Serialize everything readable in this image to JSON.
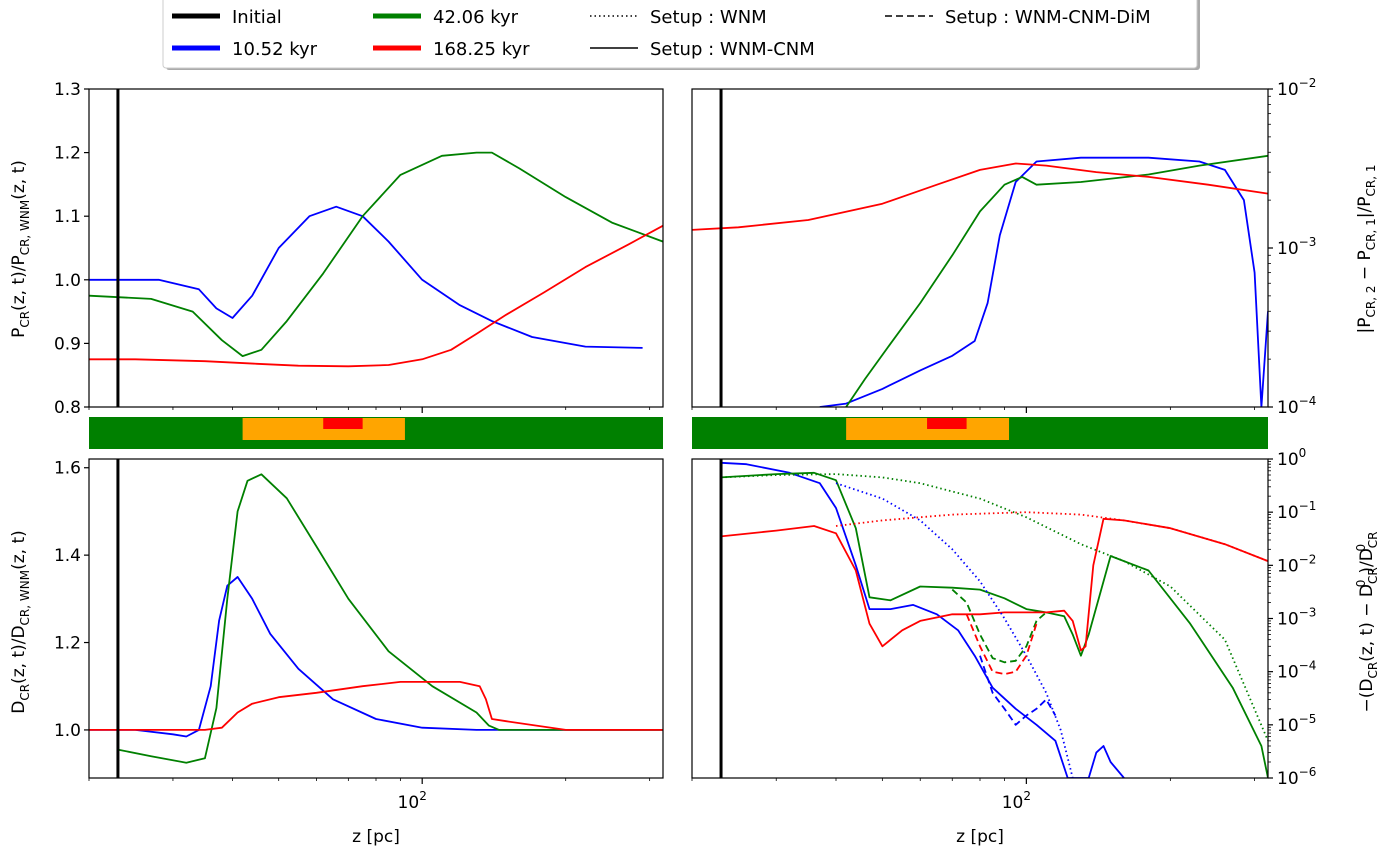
{
  "legend": {
    "entries": [
      {
        "label": "Initial",
        "color": "#000000",
        "style": "thick"
      },
      {
        "label": "10.52 kyr",
        "color": "#0000ff",
        "style": "thick"
      },
      {
        "label": "42.06 kyr",
        "color": "#008000",
        "style": "thick"
      },
      {
        "label": "168.25 kyr",
        "color": "#ff0000",
        "style": "thick"
      },
      {
        "label": "Setup : WNM",
        "color": "#000000",
        "style": "dotted"
      },
      {
        "label": "Setup : WNM-CNM",
        "color": "#000000",
        "style": "solid"
      },
      {
        "label": "Setup : WNM-CNM-DiM",
        "color": "#000000",
        "style": "dashed"
      }
    ]
  },
  "chart_data": [
    {
      "type": "line",
      "panel": "top-left",
      "ylabel": "P_CR(z,t)/P_CR,WNM(z,t)",
      "xscale": "log",
      "xlim": [
        20,
        320
      ],
      "ylim": [
        0.8,
        1.3
      ],
      "yticks": [
        "0.8",
        "0.9",
        "1.0",
        "1.1",
        "1.2",
        "1.3"
      ],
      "initial_x": 23,
      "series": [
        {
          "name": "10.52 kyr",
          "color": "#0000ff",
          "x": [
            20,
            28,
            34,
            37,
            40,
            44,
            50,
            58,
            66,
            75,
            85,
            100,
            120,
            140,
            170,
            220,
            290
          ],
          "y": [
            1.0,
            1.0,
            0.985,
            0.955,
            0.94,
            0.975,
            1.05,
            1.1,
            1.115,
            1.1,
            1.06,
            1.0,
            0.96,
            0.935,
            0.91,
            0.895,
            0.893
          ]
        },
        {
          "name": "42.06 kyr",
          "color": "#008000",
          "x": [
            20,
            27,
            33,
            38,
            42,
            46,
            52,
            62,
            75,
            90,
            110,
            130,
            140,
            160,
            200,
            250,
            320
          ],
          "y": [
            0.975,
            0.97,
            0.95,
            0.905,
            0.88,
            0.89,
            0.935,
            1.01,
            1.1,
            1.165,
            1.195,
            1.2,
            1.2,
            1.175,
            1.13,
            1.09,
            1.06
          ]
        },
        {
          "name": "168.25 kyr",
          "color": "#ff0000",
          "x": [
            20,
            25,
            35,
            45,
            55,
            70,
            85,
            100,
            115,
            130,
            150,
            180,
            220,
            270,
            320
          ],
          "y": [
            0.875,
            0.875,
            0.872,
            0.868,
            0.865,
            0.864,
            0.866,
            0.875,
            0.89,
            0.915,
            0.945,
            0.98,
            1.02,
            1.055,
            1.085
          ]
        }
      ]
    },
    {
      "type": "line",
      "panel": "top-right",
      "ylabel": "|P_CR,2 − P_CR,1|/P_CR,1",
      "xscale": "log",
      "yscale": "log",
      "xlim": [
        20,
        320
      ],
      "ylim": [
        0.0001,
        0.01
      ],
      "yticks": [
        "10^-4",
        "10^-3",
        "10^-2"
      ],
      "initial_x": 23,
      "series": [
        {
          "name": "10.52 kyr",
          "color": "#0000ff",
          "x": [
            37,
            42,
            50,
            60,
            70,
            78,
            83,
            88,
            95,
            105,
            130,
            180,
            230,
            260,
            285,
            300,
            310,
            320
          ],
          "y": [
            0.0001,
            0.000105,
            0.00013,
            0.00017,
            0.00021,
            0.00026,
            0.00045,
            0.0012,
            0.0026,
            0.0035,
            0.0037,
            0.0037,
            0.0035,
            0.0031,
            0.002,
            0.0007,
            0.0001,
            0.0004
          ]
        },
        {
          "name": "42.06 kyr",
          "color": "#008000",
          "x": [
            42,
            46,
            52,
            60,
            70,
            80,
            90,
            98,
            105,
            130,
            180,
            230,
            320
          ],
          "y": [
            0.0001,
            0.00015,
            0.00025,
            0.00045,
            0.0009,
            0.0017,
            0.0025,
            0.0028,
            0.0025,
            0.0026,
            0.0029,
            0.0033,
            0.0038
          ]
        },
        {
          "name": "168.25 kyr",
          "color": "#ff0000",
          "x": [
            20,
            25,
            35,
            50,
            65,
            80,
            95,
            110,
            140,
            180,
            240,
            320
          ],
          "y": [
            0.0013,
            0.00135,
            0.0015,
            0.0019,
            0.0025,
            0.0031,
            0.0034,
            0.0033,
            0.003,
            0.0028,
            0.0025,
            0.0022
          ]
        }
      ]
    },
    {
      "type": "line",
      "panel": "bottom-left",
      "ylabel": "D_CR(z,t)/D_CR,WNM(z,t)",
      "xlabel": "z [pc]",
      "xscale": "log",
      "xlim": [
        20,
        320
      ],
      "ylim": [
        0.89,
        1.62
      ],
      "yticks": [
        "1.0",
        "1.2",
        "1.4",
        "1.6"
      ],
      "xticks": [
        "10^2"
      ],
      "initial_x": 23,
      "series": [
        {
          "name": "10.52 kyr",
          "color": "#0000ff",
          "x": [
            20,
            25,
            30,
            32,
            34,
            36,
            37.5,
            39,
            41,
            44,
            48,
            55,
            65,
            80,
            100,
            130,
            200,
            320
          ],
          "y": [
            1.0,
            1.0,
            0.99,
            0.985,
            1.0,
            1.1,
            1.25,
            1.33,
            1.35,
            1.3,
            1.22,
            1.14,
            1.07,
            1.025,
            1.005,
            1.0,
            1.0,
            1.0
          ]
        },
        {
          "name": "42.06 kyr",
          "color": "#008000",
          "x": [
            23,
            27,
            32,
            35,
            37,
            39,
            41,
            43,
            46,
            52,
            60,
            70,
            85,
            105,
            130,
            138,
            145,
            170,
            250,
            320
          ],
          "y": [
            0.955,
            0.94,
            0.925,
            0.935,
            1.05,
            1.3,
            1.5,
            1.57,
            1.585,
            1.53,
            1.42,
            1.3,
            1.18,
            1.1,
            1.04,
            1.01,
            1.0,
            1.0,
            1.0,
            1.0
          ]
        },
        {
          "name": "168.25 kyr",
          "color": "#ff0000",
          "x": [
            20,
            30,
            35,
            38,
            41,
            44,
            50,
            60,
            75,
            90,
            100,
            120,
            132,
            136,
            140,
            150,
            200,
            320
          ],
          "y": [
            1.0,
            1.0,
            1.0,
            1.005,
            1.04,
            1.06,
            1.075,
            1.085,
            1.1,
            1.11,
            1.11,
            1.11,
            1.1,
            1.07,
            1.025,
            1.02,
            1.0,
            1.0
          ]
        }
      ]
    },
    {
      "type": "line",
      "panel": "bottom-right",
      "ylabel": "−(D_CR(z,t) − D_CR^0)/D_CR^0",
      "xlabel": "z [pc]",
      "xscale": "log",
      "yscale": "log",
      "xlim": [
        20,
        320
      ],
      "ylim": [
        1e-06,
        1
      ],
      "yticks": [
        "10^-6",
        "10^-5",
        "10^-4",
        "10^-3",
        "10^-2",
        "10^-1",
        "10^0"
      ],
      "xticks": [
        "10^2"
      ],
      "initial_x": 23,
      "series": [
        {
          "name": "10.52 kyr",
          "color": "#0000ff",
          "x": [
            23,
            26,
            32,
            37,
            40,
            44,
            47,
            52,
            58,
            65,
            72,
            78,
            85,
            95,
            105,
            115,
            122,
            128,
            135,
            140,
            145,
            150,
            160
          ],
          "y": [
            0.85,
            0.8,
            0.55,
            0.35,
            0.12,
            0.01,
            0.0015,
            0.0015,
            0.0018,
            0.0012,
            0.0006,
            0.0002,
            5e-05,
            2e-05,
            1e-05,
            5e-06,
            1e-06,
            1e-06,
            1e-06,
            3e-06,
            4e-06,
            2e-06,
            1e-06
          ]
        },
        {
          "name": "42.06 kyr",
          "color": "#008000",
          "x": [
            23,
            30,
            36,
            40,
            44,
            47,
            52,
            60,
            70,
            80,
            90,
            100,
            110,
            120,
            125,
            130,
            135,
            150,
            180,
            220,
            270,
            310,
            320
          ],
          "y": [
            0.45,
            0.52,
            0.55,
            0.4,
            0.05,
            0.0025,
            0.0022,
            0.004,
            0.0038,
            0.0035,
            0.0024,
            0.0015,
            0.0013,
            0.0011,
            0.0005,
            0.0002,
            0.0005,
            0.015,
            0.008,
            0.0008,
            5e-05,
            4e-06,
            1e-06
          ]
        },
        {
          "name": "168.25 kyr",
          "color": "#ff0000",
          "x": [
            23,
            30,
            36,
            40,
            44,
            47,
            50,
            55,
            60,
            70,
            80,
            90,
            100,
            110,
            120,
            125,
            130,
            133,
            138,
            145,
            160,
            200,
            260,
            320
          ],
          "y": [
            0.035,
            0.045,
            0.055,
            0.04,
            0.008,
            0.0008,
            0.0003,
            0.0006,
            0.0009,
            0.0012,
            0.0012,
            0.0013,
            0.0013,
            0.0013,
            0.0014,
            0.0009,
            0.00025,
            0.0003,
            0.01,
            0.075,
            0.07,
            0.05,
            0.025,
            0.012
          ]
        },
        {
          "name": "42.06 kyr WNM",
          "color": "#008000",
          "dash": "dotted",
          "x": [
            23,
            30,
            40,
            50,
            60,
            80,
            100,
            130,
            160,
            200,
            260,
            320
          ],
          "y": [
            0.45,
            0.5,
            0.52,
            0.45,
            0.35,
            0.18,
            0.08,
            0.025,
            0.012,
            0.004,
            0.0004,
            5e-06
          ]
        },
        {
          "name": "168.25 kyr WNM",
          "color": "#ff0000",
          "dash": "dotted",
          "x": [
            40,
            50,
            70,
            100,
            130,
            160,
            200,
            260,
            320
          ],
          "y": [
            0.055,
            0.07,
            0.09,
            0.1,
            0.09,
            0.07,
            0.05,
            0.025,
            0.012
          ]
        },
        {
          "name": "10.52 kyr WNM",
          "color": "#0000ff",
          "dash": "dotted",
          "x": [
            40,
            50,
            60,
            70,
            80,
            90,
            100,
            110,
            118,
            125
          ],
          "y": [
            0.35,
            0.18,
            0.07,
            0.02,
            0.005,
            0.001,
            0.0002,
            4e-05,
            8e-06,
            1e-06
          ]
        },
        {
          "name": "10.52 kyr DiM",
          "color": "#0000ff",
          "dash": "dashed",
          "x": [
            80,
            85,
            90,
            95,
            100,
            105,
            110,
            115
          ],
          "y": [
            0.0002,
            4e-05,
            2e-05,
            1e-05,
            1.5e-05,
            2e-05,
            3e-05,
            1.5e-05
          ]
        },
        {
          "name": "42.06 kyr DiM",
          "color": "#008000",
          "dash": "dashed",
          "x": [
            70,
            75,
            80,
            85,
            90,
            95,
            100,
            105,
            110
          ],
          "y": [
            0.0035,
            0.002,
            0.0005,
            0.00018,
            0.00015,
            0.00016,
            0.0003,
            0.0009,
            0.0013
          ]
        },
        {
          "name": "168.25 kyr DiM",
          "color": "#ff0000",
          "dash": "dashed",
          "x": [
            75,
            80,
            85,
            90,
            95,
            100,
            105
          ],
          "y": [
            0.0012,
            0.0003,
            0.0001,
            9e-05,
            0.0001,
            0.0002,
            0.0008
          ]
        }
      ]
    }
  ],
  "phase_bars": [
    {
      "panel": "left",
      "segments": [
        {
          "x0": 20,
          "x1": 320,
          "color": "#008000"
        },
        {
          "x0": 42,
          "x1": 92,
          "color": "#ffa500"
        },
        {
          "x0": 62,
          "x1": 75,
          "color": "#ff0000"
        }
      ]
    },
    {
      "panel": "right",
      "segments": [
        {
          "x0": 20,
          "x1": 320,
          "color": "#008000"
        },
        {
          "x0": 42,
          "x1": 92,
          "color": "#ffa500"
        },
        {
          "x0": 62,
          "x1": 75,
          "color": "#ff0000"
        }
      ]
    }
  ]
}
